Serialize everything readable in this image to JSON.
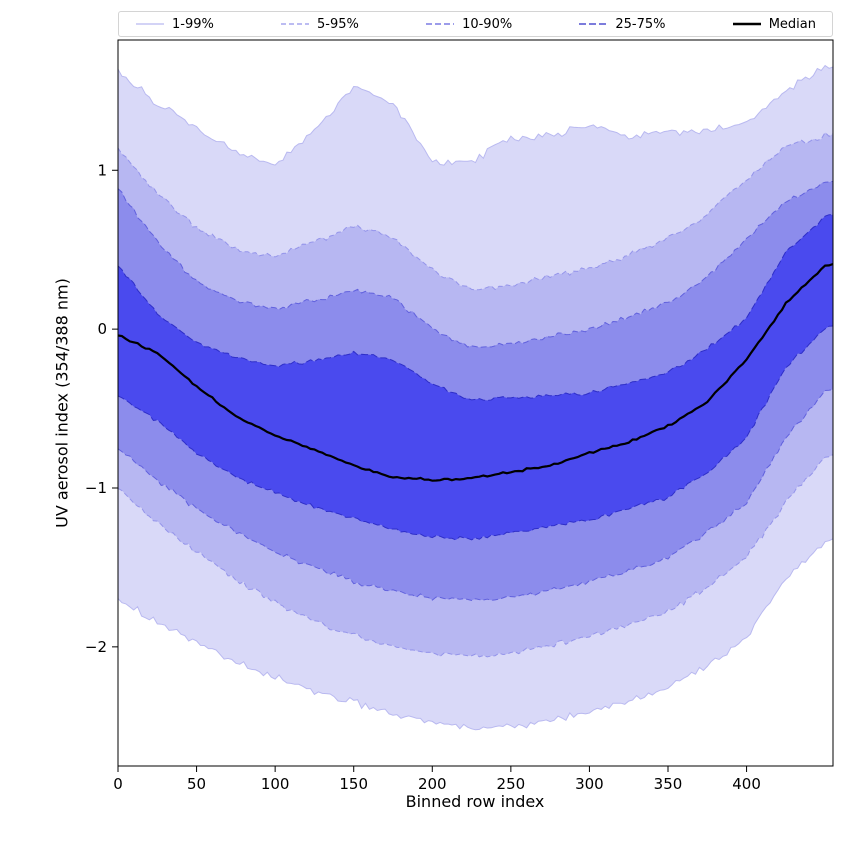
{
  "figure": {
    "background": "#ffffff"
  },
  "chart_data": {
    "type": "area",
    "subtype": "percentile-fan-bands",
    "title": "",
    "xlabel": "Binned row index",
    "ylabel": "UV aerosol index (354/388 nm)",
    "xlim": [
      0,
      455
    ],
    "ylim": [
      -2.75,
      1.82
    ],
    "xticks": [
      0,
      50,
      100,
      150,
      200,
      250,
      300,
      350,
      400
    ],
    "xtick_labels": [
      "0",
      "50",
      "100",
      "150",
      "200",
      "250",
      "300",
      "350",
      "400"
    ],
    "yticks": [
      -2,
      -1,
      0,
      1
    ],
    "ytick_labels": [
      "−2",
      "−1",
      "0",
      "1"
    ],
    "grid": false,
    "legend": {
      "position": "top-outside-horizontal",
      "entries": [
        "1-99%",
        "5-95%",
        "10-90%",
        "25-75%",
        "Median"
      ]
    },
    "x": [
      0,
      25,
      50,
      75,
      100,
      125,
      150,
      175,
      200,
      225,
      250,
      275,
      300,
      325,
      350,
      375,
      400,
      425,
      450,
      455
    ],
    "bands": [
      {
        "label": "1-99%",
        "fill": "#d9d9f8",
        "line_color": "#b9b9f0",
        "dash": "",
        "line_width": 1,
        "noise_amp": 0.03,
        "upper": [
          1.62,
          1.42,
          1.26,
          1.12,
          1.04,
          1.25,
          1.53,
          1.42,
          1.05,
          1.06,
          1.2,
          1.21,
          1.28,
          1.22,
          1.24,
          1.25,
          1.3,
          1.5,
          1.65,
          1.65
        ],
        "lower": [
          -1.69,
          -1.85,
          -1.97,
          -2.1,
          -2.19,
          -2.28,
          -2.35,
          -2.42,
          -2.47,
          -2.52,
          -2.5,
          -2.46,
          -2.41,
          -2.34,
          -2.25,
          -2.12,
          -1.94,
          -1.56,
          -1.35,
          -1.32
        ]
      },
      {
        "label": "5-95%",
        "fill": "#b7b7f2",
        "line_color": "#9494ea",
        "dash": "5 3",
        "line_width": 1,
        "noise_amp": 0.022,
        "upper": [
          1.14,
          0.85,
          0.64,
          0.5,
          0.46,
          0.55,
          0.65,
          0.58,
          0.38,
          0.25,
          0.28,
          0.33,
          0.38,
          0.47,
          0.57,
          0.72,
          0.94,
          1.15,
          1.22,
          1.23
        ],
        "lower": [
          -1.0,
          -1.22,
          -1.4,
          -1.58,
          -1.72,
          -1.84,
          -1.93,
          -2.0,
          -2.04,
          -2.06,
          -2.04,
          -1.99,
          -1.94,
          -1.86,
          -1.78,
          -1.62,
          -1.44,
          -1.09,
          -0.81,
          -0.79
        ]
      },
      {
        "label": "10-90%",
        "fill": "#8c8cec",
        "line_color": "#6161dd",
        "dash": "6 3",
        "line_width": 1,
        "noise_amp": 0.018,
        "upper": [
          0.88,
          0.55,
          0.3,
          0.18,
          0.13,
          0.18,
          0.24,
          0.2,
          0.0,
          -0.12,
          -0.09,
          -0.05,
          0.0,
          0.08,
          0.16,
          0.33,
          0.57,
          0.8,
          0.92,
          0.93
        ],
        "lower": [
          -0.74,
          -0.95,
          -1.13,
          -1.28,
          -1.4,
          -1.5,
          -1.59,
          -1.65,
          -1.69,
          -1.7,
          -1.69,
          -1.64,
          -1.59,
          -1.52,
          -1.44,
          -1.28,
          -1.09,
          -0.68,
          -0.4,
          -0.38
        ]
      },
      {
        "label": "25-75%",
        "fill": "#4a4aee",
        "line_color": "#2e2ec8",
        "dash": "7 3",
        "line_width": 1,
        "noise_amp": 0.015,
        "upper": [
          0.4,
          0.1,
          -0.09,
          -0.18,
          -0.23,
          -0.2,
          -0.15,
          -0.19,
          -0.34,
          -0.45,
          -0.43,
          -0.42,
          -0.4,
          -0.34,
          -0.28,
          -0.12,
          0.07,
          0.48,
          0.71,
          0.72
        ],
        "lower": [
          -0.42,
          -0.58,
          -0.78,
          -0.93,
          -1.03,
          -1.12,
          -1.19,
          -1.26,
          -1.31,
          -1.32,
          -1.28,
          -1.24,
          -1.2,
          -1.13,
          -1.06,
          -0.9,
          -0.68,
          -0.24,
          0.0,
          0.02
        ]
      }
    ],
    "median": {
      "label": "Median",
      "color": "#000000",
      "line_width": 2.2,
      "noise_amp": 0.008,
      "values": [
        -0.04,
        -0.15,
        -0.36,
        -0.55,
        -0.67,
        -0.76,
        -0.86,
        -0.93,
        -0.95,
        -0.94,
        -0.9,
        -0.86,
        -0.78,
        -0.71,
        -0.61,
        -0.46,
        -0.19,
        0.16,
        0.4,
        0.41
      ]
    },
    "axis_color": "#000000",
    "legend_border_color": "#d4d4d4"
  }
}
